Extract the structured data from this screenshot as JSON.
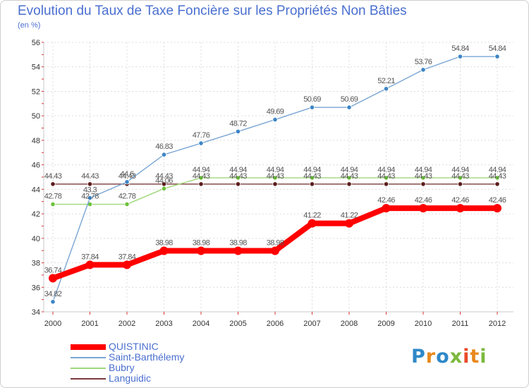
{
  "header": {
    "title": "Evolution du Taux de Taxe Foncière sur les Propriétés Non Bâties",
    "unit": "(en %)"
  },
  "logo": {
    "text": "Proxiti",
    "colors": [
      "#2e88c8",
      "#e9891d",
      "#2e88c8",
      "#7cb93d",
      "#e94a2a",
      "#e9891d",
      "#7cb93d"
    ]
  },
  "chart_data": {
    "type": "line",
    "title": "Evolution du Taux de Taxe Foncière sur les Propriétés Non Bâties",
    "ylabel": "(en %)",
    "xlabel": "",
    "categories": [
      "2000",
      "2001",
      "2002",
      "2003",
      "2004",
      "2005",
      "2006",
      "2007",
      "2008",
      "2009",
      "2010",
      "2011",
      "2012"
    ],
    "ylim": [
      34,
      56
    ],
    "yticks": [
      34,
      36,
      38,
      40,
      42,
      44,
      46,
      48,
      50,
      52,
      54,
      56
    ],
    "grid": true,
    "legend_position": "bottom-left",
    "series": [
      {
        "name": "QUISTINIC",
        "color": "#ff0000",
        "values": [
          36.74,
          37.84,
          37.84,
          38.98,
          38.98,
          38.98,
          38.98,
          41.22,
          41.22,
          42.46,
          42.46,
          42.46,
          42.46
        ],
        "labels": [
          "36.74",
          "37.84",
          "37.84",
          "38.98",
          "38.98",
          "38.98",
          "38.98",
          "41.22",
          "41.22",
          "42.46",
          "42.46",
          "42.46",
          "42.46"
        ]
      },
      {
        "name": "Saint-Barthélemy",
        "color": "#7aa6d4",
        "values": [
          34.82,
          43.3,
          44.6,
          46.83,
          47.76,
          48.72,
          49.69,
          50.69,
          50.69,
          52.21,
          53.76,
          54.84,
          54.84
        ],
        "labels": [
          "34.82",
          "43.3",
          "44.6",
          "46.83",
          "47.76",
          "48.72",
          "49.69",
          "50.69",
          "50.69",
          "52.21",
          "53.76",
          "54.84",
          "54.84"
        ]
      },
      {
        "name": "Bubry",
        "color": "#9fd779",
        "values": [
          42.78,
          42.78,
          42.78,
          44.06,
          44.94,
          44.94,
          44.94,
          44.94,
          44.94,
          44.94,
          44.94,
          44.94,
          44.94
        ],
        "labels": [
          "42.78",
          "42.78",
          "42.78",
          "44.06",
          "44.94",
          "44.94",
          "44.94",
          "44.94",
          "44.94",
          "44.94",
          "44.94",
          "44.94",
          "44.94"
        ]
      },
      {
        "name": "Languidic",
        "color": "#7a3b3b",
        "values": [
          44.43,
          44.43,
          44.43,
          44.43,
          44.43,
          44.43,
          44.43,
          44.43,
          44.43,
          44.43,
          44.43,
          44.43,
          44.43
        ],
        "labels": [
          "44.43",
          "44.43",
          "44.43",
          "44.43",
          "44.43",
          "44.43",
          "44.43",
          "44.43",
          "44.43",
          "44.43",
          "44.43",
          "44.43",
          "44.43"
        ]
      }
    ]
  }
}
